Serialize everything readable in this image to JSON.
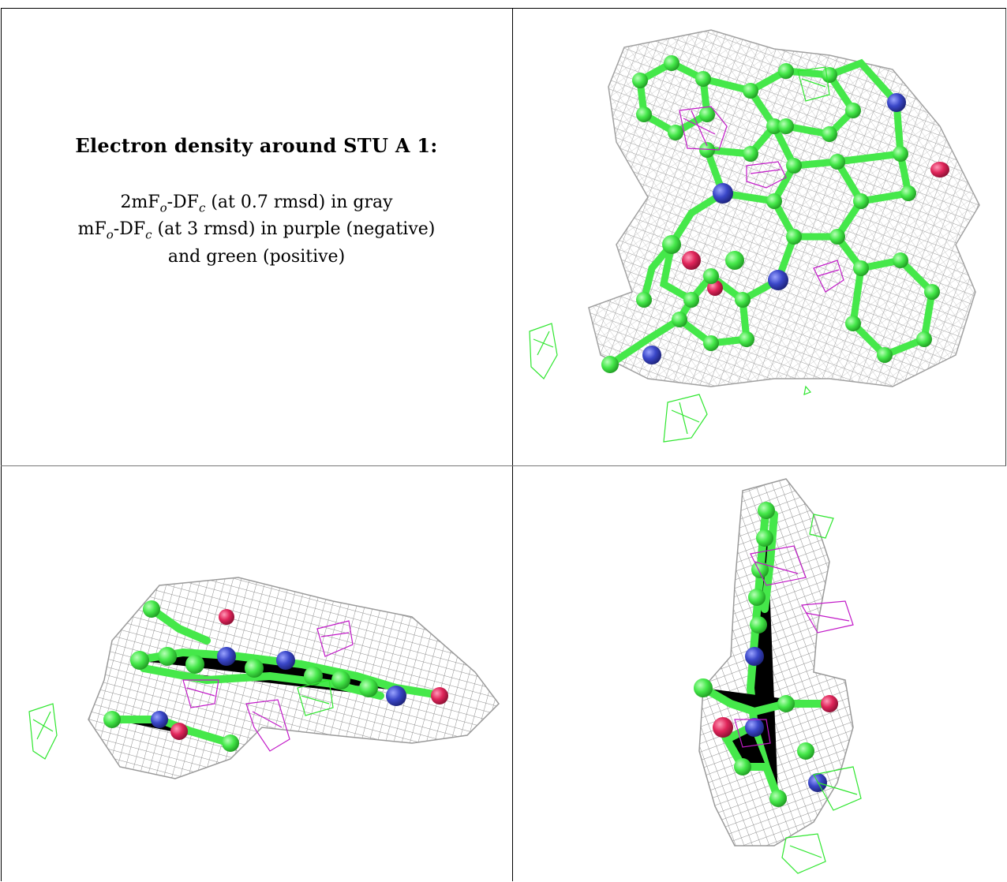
{
  "caption": {
    "title": "Electron density around STU A 1:",
    "line1_prefix": "2mF",
    "line1_sub1": "o",
    "line1_mid": "-DF",
    "line1_sub2": "c",
    "line1_suffix": " (at 0.7 rmsd) in gray",
    "line2_prefix": "mF",
    "line2_sub1": "o",
    "line2_mid": "-DF",
    "line2_sub2": "c",
    "line2_suffix": " (at 3 rmsd) in purple (negative)",
    "line3": "and green (positive)"
  },
  "colors": {
    "mesh_gray": "#a9a9a9",
    "carbon_green": "#45e84a",
    "nitrogen_blue": "#3a47c8",
    "oxygen_red": "#e0255a",
    "negative_purple": "#c21ac8",
    "positive_green": "#2ee62e"
  },
  "panels": [
    {
      "id": "top-right",
      "view": "face-on"
    },
    {
      "id": "bottom-left",
      "view": "edge-on"
    },
    {
      "id": "bottom-right",
      "view": "side-on"
    }
  ]
}
